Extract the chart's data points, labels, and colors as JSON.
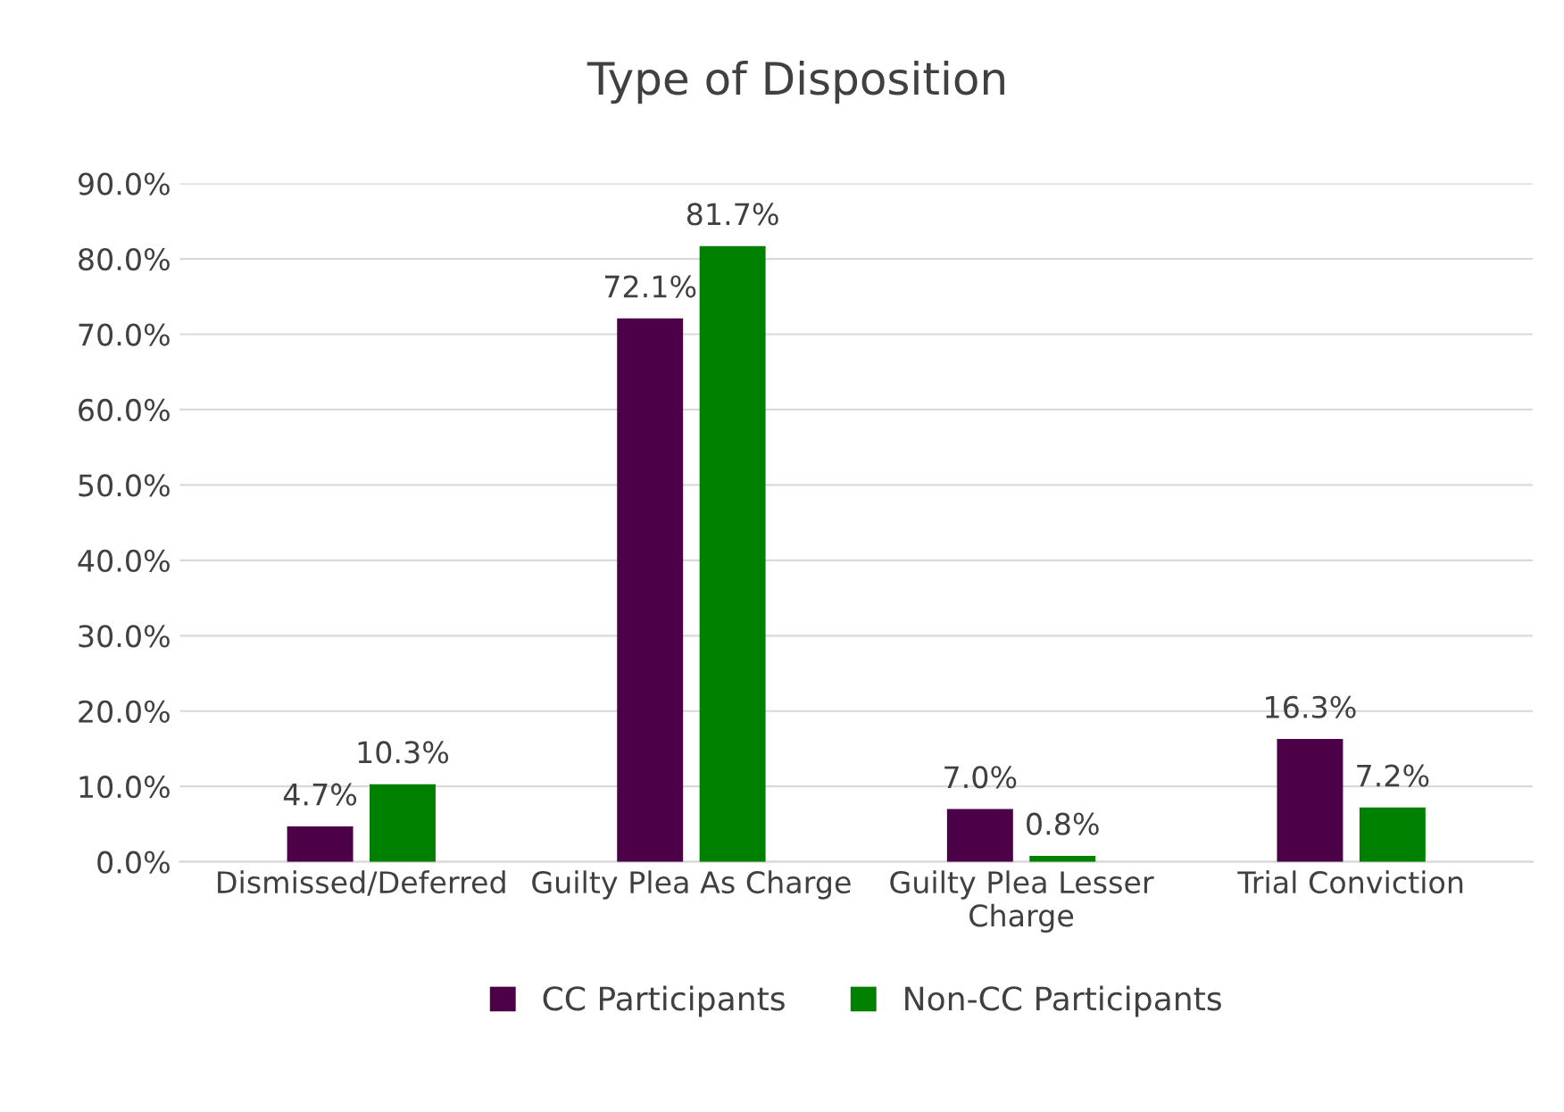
{
  "chart_data": {
    "type": "bar",
    "title": "Type of Disposition",
    "categories": [
      "Dismissed/Deferred",
      "Guilty Plea As Charge",
      "Guilty Plea Lesser\nCharge",
      "Trial Conviction"
    ],
    "series": [
      {
        "name": "CC Participants",
        "color": "#4b0048",
        "values": [
          4.7,
          72.1,
          7.0,
          16.3
        ],
        "value_labels": [
          "4.7%",
          "72.1%",
          "7.0%",
          "16.3%"
        ]
      },
      {
        "name": "Non-CC Participants",
        "color": "#008000",
        "values": [
          10.3,
          81.7,
          0.8,
          7.2
        ],
        "value_labels": [
          "10.3%",
          "81.7%",
          "0.8%",
          "7.2%"
        ]
      }
    ],
    "ylim": [
      0,
      90
    ],
    "yticks": [
      {
        "value": 0,
        "label": "0.0%"
      },
      {
        "value": 10,
        "label": "10.0%"
      },
      {
        "value": 20,
        "label": "20.0%"
      },
      {
        "value": 30,
        "label": "30.0%"
      },
      {
        "value": 40,
        "label": "40.0%"
      },
      {
        "value": 50,
        "label": "50.0%"
      },
      {
        "value": 60,
        "label": "60.0%"
      },
      {
        "value": 70,
        "label": "70.0%"
      },
      {
        "value": 80,
        "label": "80.0%"
      },
      {
        "value": 90,
        "label": "90.0%"
      }
    ],
    "grid": "y",
    "legend": "bottom"
  }
}
